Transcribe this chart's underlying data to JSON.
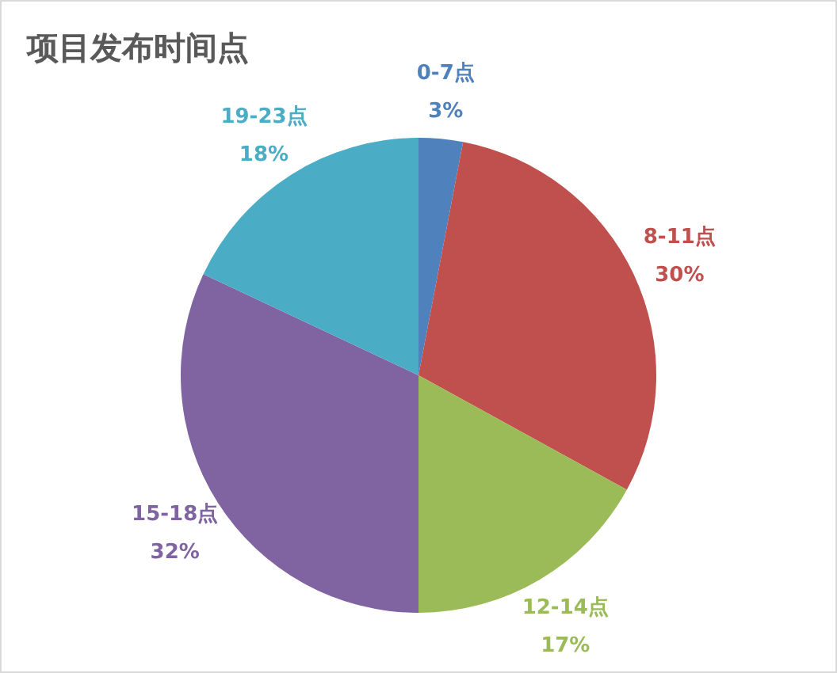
{
  "chart_data": {
    "type": "pie",
    "title": "项目发布时间点",
    "categories": [
      "0-7点",
      "8-11点",
      "12-14点",
      "15-18点",
      "19-23点"
    ],
    "values": [
      3,
      30,
      17,
      32,
      18
    ],
    "value_labels": [
      "3%",
      "30%",
      "17%",
      "32%",
      "18%"
    ],
    "colors": [
      "#4f81bd",
      "#c0504d",
      "#9bbb59",
      "#8064a2",
      "#4bacc6"
    ]
  }
}
